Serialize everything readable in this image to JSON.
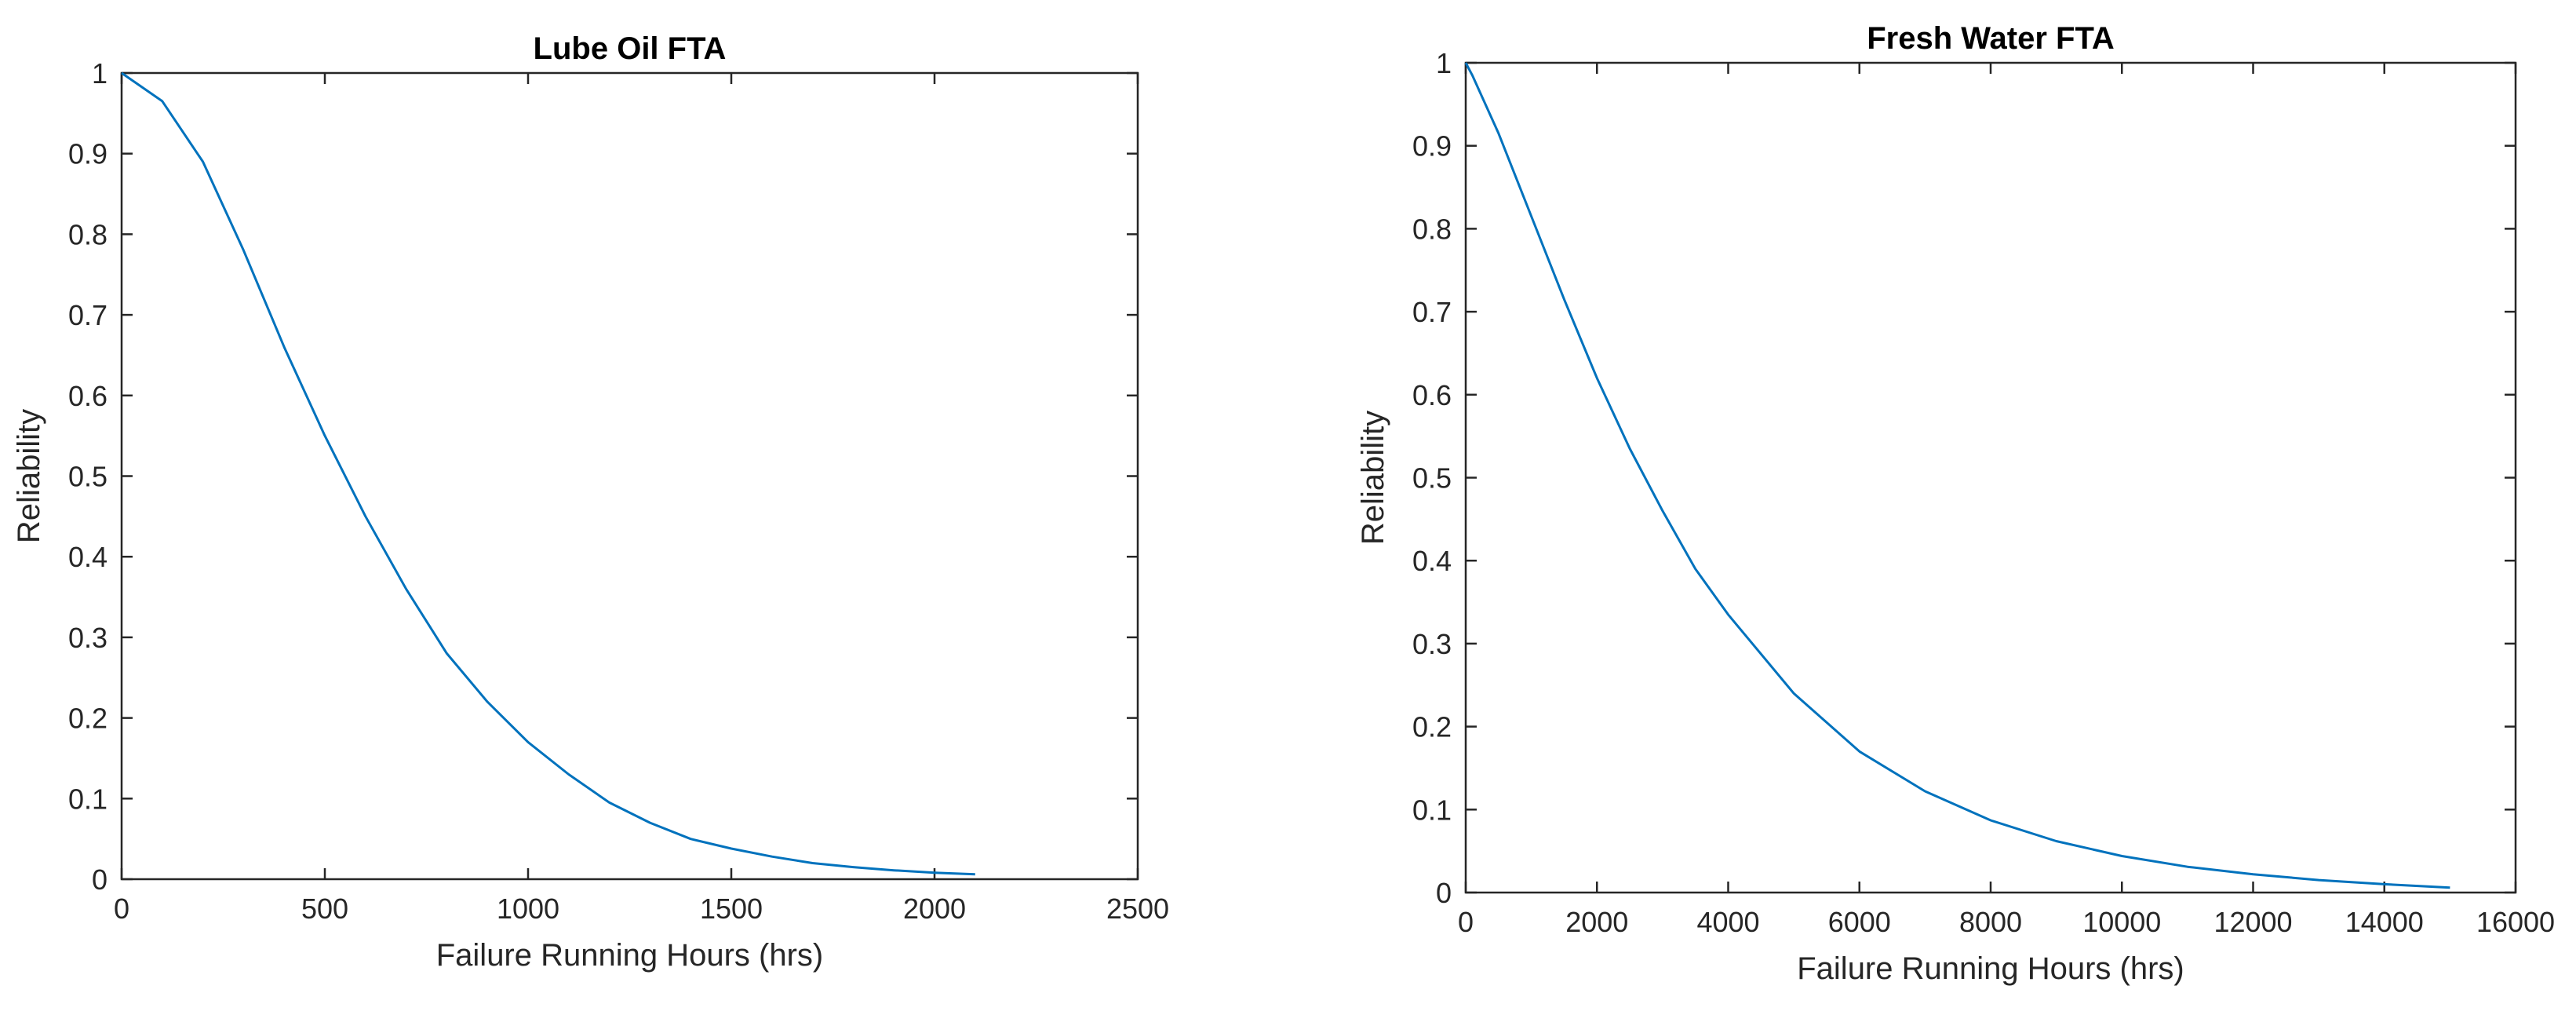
{
  "chart_data": [
    {
      "type": "line",
      "title": "Lube Oil FTA",
      "xlabel": "Failure Running Hours (hrs)",
      "ylabel": "Reliability",
      "xlim": [
        0,
        2500
      ],
      "ylim": [
        0,
        1
      ],
      "xticks": [
        0,
        500,
        1000,
        1500,
        2000,
        2500
      ],
      "yticks": [
        0,
        0.1,
        0.2,
        0.3,
        0.4,
        0.5,
        0.6,
        0.7,
        0.8,
        0.9,
        1
      ],
      "xtick_labels": [
        "0",
        "500",
        "1000",
        "1500",
        "2000",
        "2500"
      ],
      "ytick_labels": [
        "0",
        "0.1",
        "0.2",
        "0.3",
        "0.4",
        "0.5",
        "0.6",
        "0.7",
        "0.8",
        "0.9",
        "1"
      ],
      "grid": false,
      "line_color": "#0072BD",
      "series": [
        {
          "x": [
            0,
            100,
            200,
            300,
            400,
            500,
            600,
            700,
            800,
            900,
            1000,
            1100,
            1200,
            1300,
            1400,
            1500,
            1600,
            1700,
            1800,
            1900,
            2000,
            2100
          ],
          "y": [
            1.0,
            0.965,
            0.89,
            0.78,
            0.66,
            0.55,
            0.45,
            0.36,
            0.28,
            0.22,
            0.17,
            0.13,
            0.095,
            0.07,
            0.05,
            0.038,
            0.028,
            0.02,
            0.015,
            0.011,
            0.008,
            0.006
          ]
        }
      ]
    },
    {
      "type": "line",
      "title": "Fresh Water FTA",
      "xlabel": "Failure Running Hours (hrs)",
      "ylabel": "Reliability",
      "xlim": [
        0,
        16000
      ],
      "ylim": [
        0,
        1
      ],
      "xticks": [
        0,
        2000,
        4000,
        6000,
        8000,
        10000,
        12000,
        14000,
        16000
      ],
      "yticks": [
        0,
        0.1,
        0.2,
        0.3,
        0.4,
        0.5,
        0.6,
        0.7,
        0.8,
        0.9,
        1
      ],
      "xtick_labels": [
        "0",
        "2000",
        "4000",
        "6000",
        "8000",
        "10000",
        "12000",
        "14000",
        "16000"
      ],
      "ytick_labels": [
        "0",
        "0.1",
        "0.2",
        "0.3",
        "0.4",
        "0.5",
        "0.6",
        "0.7",
        "0.8",
        "0.9",
        "1"
      ],
      "grid": false,
      "line_color": "#0072BD",
      "series": [
        {
          "x": [
            0,
            100,
            500,
            1000,
            1500,
            2000,
            2500,
            3000,
            3500,
            4000,
            5000,
            6000,
            7000,
            8000,
            9000,
            10000,
            11000,
            12000,
            13000,
            14000,
            15000
          ],
          "y": [
            1.0,
            0.985,
            0.915,
            0.815,
            0.715,
            0.62,
            0.535,
            0.46,
            0.39,
            0.335,
            0.24,
            0.17,
            0.122,
            0.087,
            0.062,
            0.044,
            0.031,
            0.022,
            0.015,
            0.01,
            0.006
          ]
        }
      ]
    }
  ]
}
